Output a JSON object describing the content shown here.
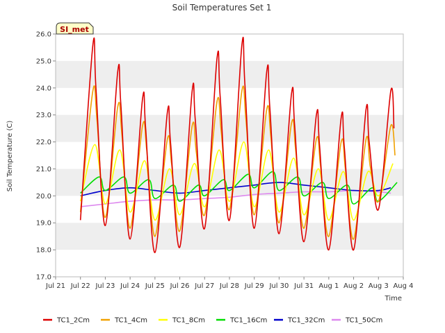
{
  "chart_data": {
    "type": "line",
    "title": "Soil Temperatures Set 1",
    "xlabel": "Time",
    "ylabel": "Soil Temperature (C)",
    "ylim": [
      17.0,
      26.0
    ],
    "yticks": [
      "17.0",
      "18.0",
      "19.0",
      "20.0",
      "21.0",
      "22.0",
      "23.0",
      "24.0",
      "25.0",
      "26.0"
    ],
    "xlim": [
      "Jul 21",
      "Aug 4"
    ],
    "xticks": [
      "Jul 21",
      "Jul 22",
      "Jul 23",
      "Jul 24",
      "Jul 25",
      "Jul 26",
      "Jul 27",
      "Jul 28",
      "Jul 29",
      "Jul 30",
      "Jul 31",
      "Aug 1",
      "Aug 2",
      "Aug 3",
      "Aug 4"
    ],
    "grid": "horizontal alternating bands",
    "legend_position": "bottom",
    "badge": "SI_met",
    "series": [
      {
        "name": "TC1_2Cm",
        "color": "#dd0000",
        "x": [
          "Jul 22",
          "Jul 22 12:00",
          "Jul 22 15:00",
          "Jul 23",
          "Jul 23 12:00",
          "Jul 23 15:00",
          "Jul 24",
          "Jul 24 12:00",
          "Jul 24 15:00",
          "Jul 25",
          "Jul 25 12:00",
          "Jul 25 15:00",
          "Jul 26",
          "Jul 26 12:00",
          "Jul 26 15:00",
          "Jul 27",
          "Jul 27 12:00",
          "Jul 27 15:00",
          "Jul 28",
          "Jul 28 12:00",
          "Jul 28 15:00",
          "Jul 29",
          "Jul 29 12:00",
          "Jul 29 15:00",
          "Jul 30",
          "Jul 30 12:00",
          "Jul 30 15:00",
          "Jul 31",
          "Jul 31 12:00",
          "Jul 31 15:00",
          "Aug 1",
          "Aug 1 12:00",
          "Aug 1 15:00",
          "Aug 2",
          "Aug 2 12:00",
          "Aug 2 15:00",
          "Aug 3",
          "Aug 3 12:00",
          "Aug 3 15:00"
        ],
        "y": [
          19.1,
          25.6,
          24.0,
          18.9,
          24.6,
          23.4,
          18.4,
          23.6,
          22.5,
          17.9,
          23.1,
          22.0,
          18.1,
          23.9,
          22.8,
          18.8,
          25.1,
          23.7,
          19.1,
          25.6,
          24.1,
          18.8,
          24.6,
          23.3,
          18.6,
          23.8,
          22.6,
          18.3,
          23.0,
          21.9,
          18.0,
          22.9,
          21.8,
          18.0,
          23.2,
          22.0,
          19.5,
          23.9,
          22.5
        ]
      },
      {
        "name": "TC1_4Cm",
        "color": "#f0a000",
        "x": [
          "Jul 22",
          "Jul 22 12:00",
          "Jul 22 16:00",
          "Jul 23",
          "Jul 23 12:00",
          "Jul 23 16:00",
          "Jul 24",
          "Jul 24 12:00",
          "Jul 24 16:00",
          "Jul 25",
          "Jul 25 12:00",
          "Jul 25 16:00",
          "Jul 26",
          "Jul 26 12:00",
          "Jul 26 16:00",
          "Jul 27",
          "Jul 27 12:00",
          "Jul 27 16:00",
          "Jul 28",
          "Jul 28 12:00",
          "Jul 28 16:00",
          "Jul 29",
          "Jul 29 12:00",
          "Jul 29 16:00",
          "Jul 30",
          "Jul 30 12:00",
          "Jul 30 16:00",
          "Jul 31",
          "Jul 31 12:00",
          "Jul 31 16:00",
          "Aug 1",
          "Aug 1 12:00",
          "Aug 1 16:00",
          "Aug 2",
          "Aug 2 12:00",
          "Aug 2 16:00",
          "Aug 3",
          "Aug 3 12:00",
          "Aug 3 16:00"
        ],
        "y": [
          19.4,
          23.9,
          22.8,
          19.2,
          23.3,
          22.3,
          18.8,
          22.6,
          21.7,
          18.5,
          22.1,
          21.2,
          18.7,
          22.6,
          21.6,
          19.3,
          23.5,
          22.4,
          19.5,
          23.9,
          22.8,
          19.3,
          23.2,
          22.2,
          19.0,
          22.7,
          21.7,
          18.8,
          22.1,
          21.1,
          18.5,
          22.0,
          21.0,
          18.4,
          22.1,
          21.1,
          19.8,
          22.6,
          21.5
        ]
      },
      {
        "name": "TC1_8Cm",
        "color": "#ffff00",
        "x": [
          "Jul 22",
          "Jul 22 14:00",
          "Jul 23",
          "Jul 23 14:00",
          "Jul 24",
          "Jul 24 14:00",
          "Jul 25",
          "Jul 25 14:00",
          "Jul 26",
          "Jul 26 14:00",
          "Jul 27",
          "Jul 27 14:00",
          "Jul 28",
          "Jul 28 14:00",
          "Jul 29",
          "Jul 29 14:00",
          "Jul 30",
          "Jul 30 14:00",
          "Jul 31",
          "Jul 31 14:00",
          "Aug 1",
          "Aug 1 14:00",
          "Aug 2",
          "Aug 2 14:00",
          "Aug 3",
          "Aug 3 14:00"
        ],
        "y": [
          19.8,
          21.9,
          19.7,
          21.7,
          19.4,
          21.3,
          19.1,
          21.0,
          19.3,
          21.2,
          19.6,
          21.7,
          19.8,
          22.0,
          19.6,
          21.7,
          19.4,
          21.4,
          19.3,
          21.0,
          19.1,
          20.9,
          19.1,
          20.9,
          20.0,
          21.2
        ]
      },
      {
        "name": "TC1_16Cm",
        "color": "#00dd00",
        "x": [
          "Jul 22",
          "Jul 22 18:00",
          "Jul 23",
          "Jul 23 18:00",
          "Jul 24",
          "Jul 24 18:00",
          "Jul 25",
          "Jul 25 18:00",
          "Jul 26",
          "Jul 26 18:00",
          "Jul 27",
          "Jul 27 18:00",
          "Jul 28",
          "Jul 28 18:00",
          "Jul 29",
          "Jul 29 18:00",
          "Jul 30",
          "Jul 30 18:00",
          "Jul 31",
          "Jul 31 18:00",
          "Aug 1",
          "Aug 1 18:00",
          "Aug 2",
          "Aug 2 18:00",
          "Aug 3",
          "Aug 3 18:00"
        ],
        "y": [
          20.1,
          20.7,
          20.2,
          20.7,
          20.1,
          20.6,
          19.9,
          20.4,
          19.8,
          20.4,
          20.0,
          20.6,
          20.2,
          20.8,
          20.3,
          20.9,
          20.2,
          20.7,
          20.0,
          20.5,
          19.9,
          20.4,
          19.7,
          20.3,
          19.8,
          20.5
        ]
      },
      {
        "name": "TC1_32Cm",
        "color": "#0000cc",
        "x": [
          "Jul 22",
          "Jul 23",
          "Jul 24",
          "Jul 25",
          "Jul 26",
          "Jul 27",
          "Jul 28",
          "Jul 29",
          "Jul 30",
          "Jul 31",
          "Aug 1",
          "Aug 2",
          "Aug 3",
          "Aug 3 12:00"
        ],
        "y": [
          20.0,
          20.2,
          20.3,
          20.2,
          20.1,
          20.2,
          20.3,
          20.4,
          20.5,
          20.4,
          20.3,
          20.2,
          20.2,
          20.3
        ]
      },
      {
        "name": "TC1_50Cm",
        "color": "#dd88ee",
        "x": [
          "Jul 22",
          "Jul 23",
          "Jul 24",
          "Jul 25",
          "Jul 26",
          "Jul 27",
          "Jul 28",
          "Jul 29",
          "Jul 30",
          "Jul 31",
          "Aug 1",
          "Aug 2",
          "Aug 3",
          "Aug 3 12:00"
        ],
        "y": [
          19.6,
          19.7,
          19.8,
          19.85,
          19.85,
          19.9,
          19.95,
          20.05,
          20.1,
          20.15,
          20.15,
          20.2,
          20.15,
          20.1
        ]
      }
    ]
  }
}
